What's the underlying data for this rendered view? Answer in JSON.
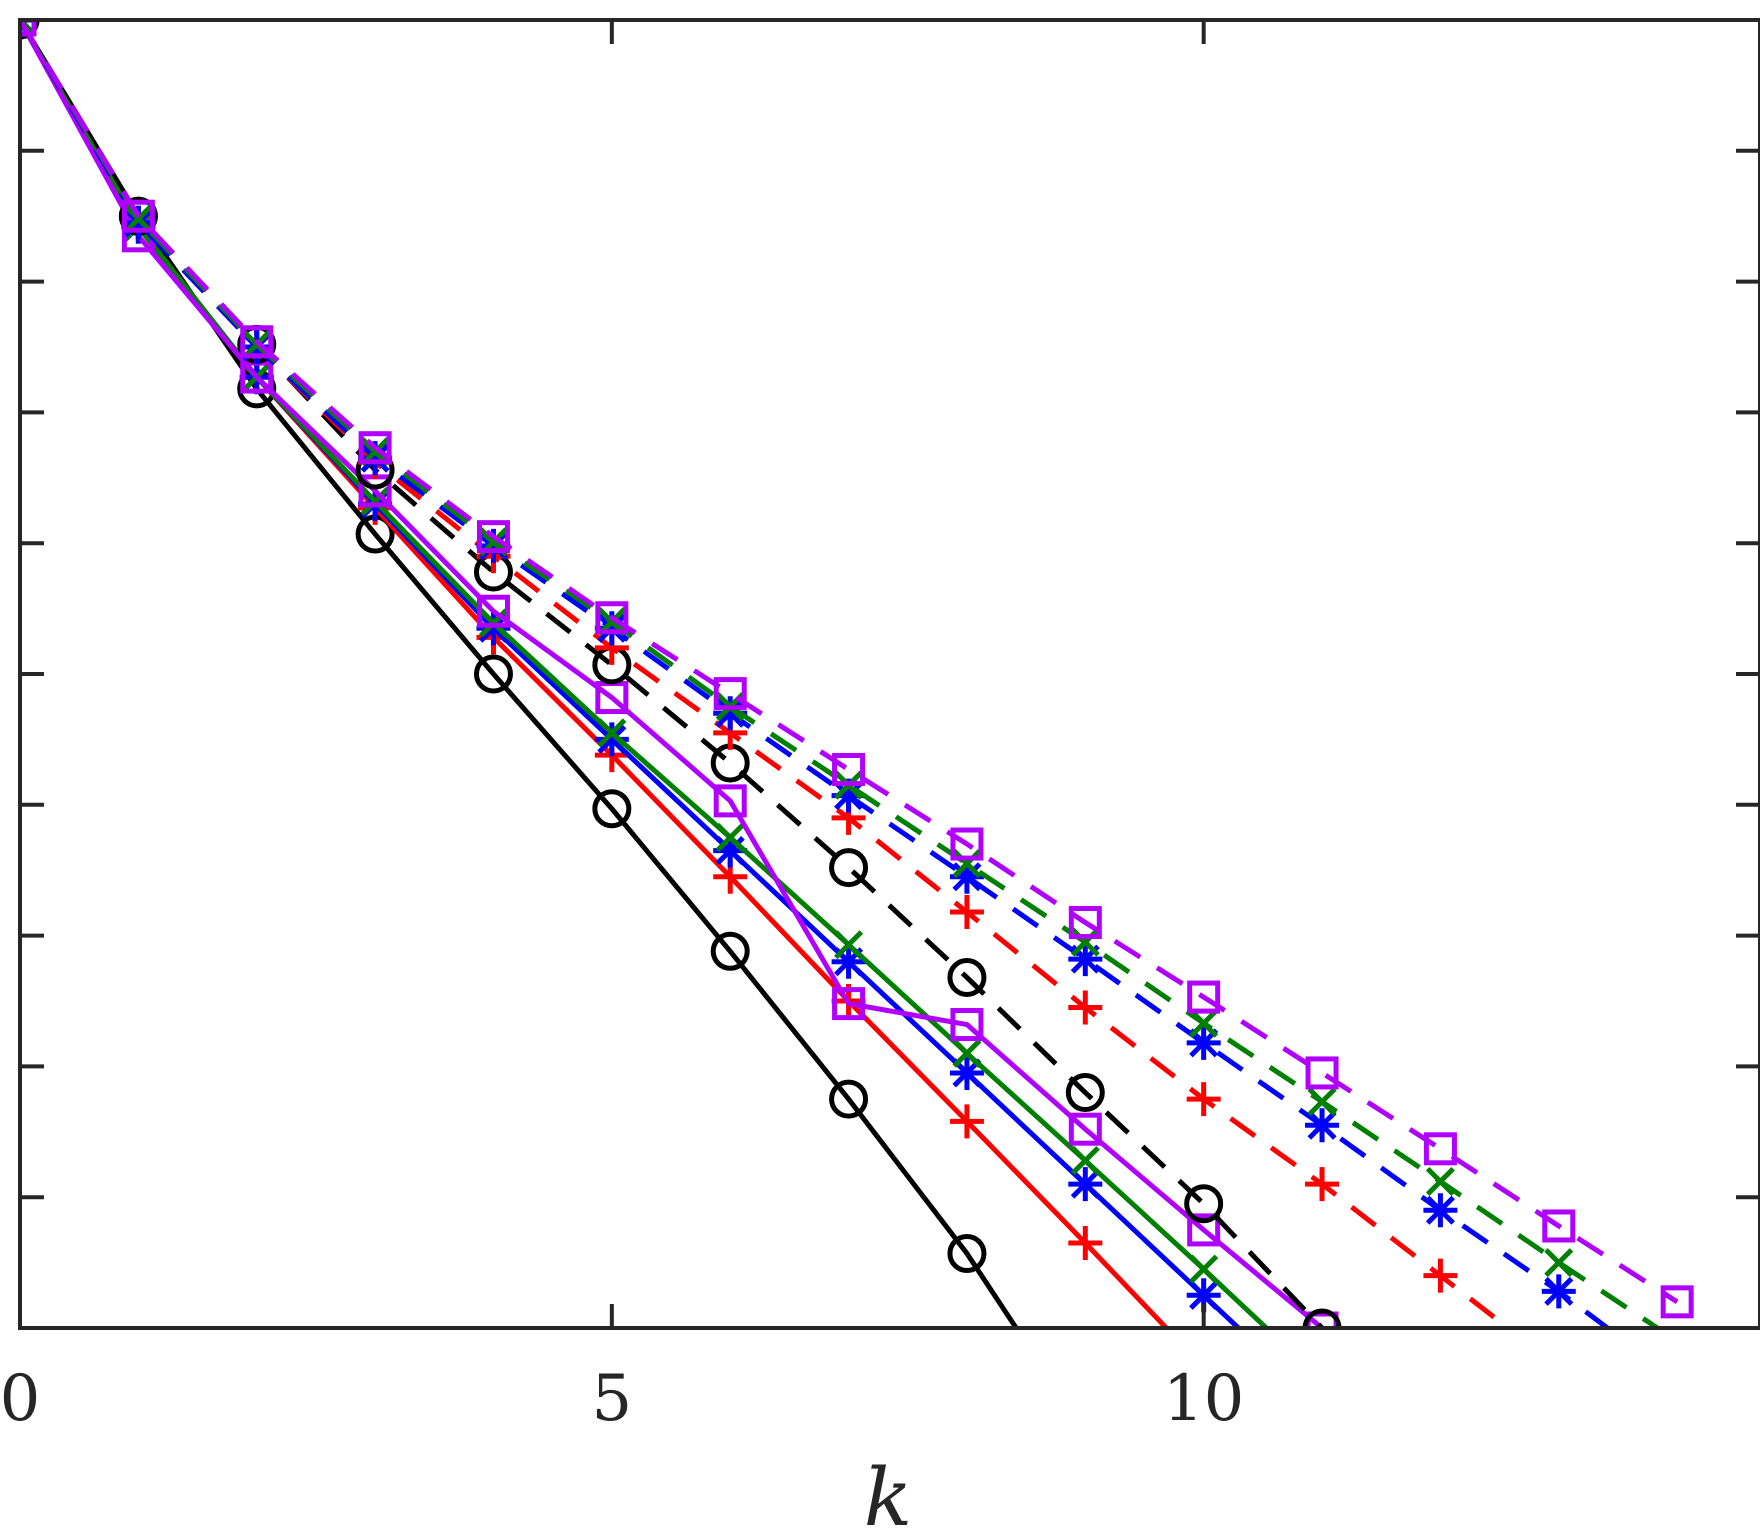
{
  "chart_data": {
    "type": "line",
    "xlabel": "k",
    "ylabel": "",
    "title": "",
    "xlim": [
      0,
      14.7
    ],
    "ylim": [
      -10,
      0
    ],
    "xticks": [
      0,
      5,
      10
    ],
    "xtick_labels": [
      "0",
      "5",
      "10"
    ],
    "yticks": [
      -10,
      -9,
      -8,
      -7,
      -6,
      -5,
      -4,
      -3,
      -2,
      -1,
      0
    ],
    "ytick_labels": [],
    "grid": false,
    "legend": "none",
    "series": [
      {
        "color": "#000000",
        "dash": "solid",
        "marker": "circle",
        "x": [
          0,
          1,
          2,
          3,
          4,
          5,
          6,
          7,
          8,
          9
        ],
        "y": [
          0,
          -1.5,
          -2.82,
          -3.93,
          -5.0,
          -6.03,
          -7.12,
          -8.25,
          -9.43,
          -10.8
        ]
      },
      {
        "color": "#ff0000",
        "dash": "solid",
        "marker": "plus",
        "x": [
          0,
          1,
          2,
          3,
          4,
          5,
          6,
          7,
          8,
          9,
          10
        ],
        "y": [
          0,
          -1.58,
          -2.73,
          -3.73,
          -4.72,
          -5.62,
          -6.55,
          -7.5,
          -8.42,
          -9.35,
          -10.3
        ]
      },
      {
        "color": "#0000ff",
        "dash": "solid",
        "marker": "asterisk",
        "x": [
          0,
          1,
          2,
          3,
          4,
          5,
          6,
          7,
          8,
          9,
          10,
          11
        ],
        "y": [
          0,
          -1.58,
          -2.73,
          -3.7,
          -4.65,
          -5.5,
          -6.35,
          -7.2,
          -8.05,
          -8.9,
          -9.75,
          -10.6
        ]
      },
      {
        "color": "#008000",
        "dash": "solid",
        "marker": "cross",
        "x": [
          0,
          1,
          2,
          3,
          4,
          5,
          6,
          7,
          8,
          9,
          10,
          11
        ],
        "y": [
          0,
          -1.58,
          -2.73,
          -3.68,
          -4.61,
          -5.45,
          -6.25,
          -7.07,
          -7.9,
          -8.72,
          -9.55,
          -10.4
        ]
      },
      {
        "color": "#b000ff",
        "dash": "solid",
        "marker": "square",
        "x": [
          0,
          1,
          2,
          3,
          4,
          5,
          6,
          7,
          8,
          9,
          10,
          11
        ],
        "y": [
          0,
          -1.65,
          -2.73,
          -3.6,
          -4.52,
          -5.18,
          -5.97,
          -7.52,
          -7.68,
          -8.48,
          -9.25,
          -10.0
        ]
      },
      {
        "color": "#000000",
        "dash": "dashed",
        "marker": "circle",
        "x": [
          0,
          1,
          2,
          3,
          4,
          5,
          6,
          7,
          8,
          9,
          10,
          11
        ],
        "y": [
          0,
          -1.5,
          -2.48,
          -3.44,
          -4.22,
          -4.93,
          -5.68,
          -6.48,
          -7.32,
          -8.2,
          -9.05,
          -10.0
        ]
      },
      {
        "color": "#ff0000",
        "dash": "dashed",
        "marker": "plus",
        "x": [
          0,
          1,
          2,
          3,
          4,
          5,
          6,
          7,
          8,
          9,
          10,
          11,
          12,
          13
        ],
        "y": [
          0,
          -1.55,
          -2.5,
          -3.38,
          -4.1,
          -4.8,
          -5.45,
          -6.1,
          -6.82,
          -7.55,
          -8.25,
          -8.9,
          -9.6,
          -10.3
        ]
      },
      {
        "color": "#0000ff",
        "dash": "dashed",
        "marker": "asterisk",
        "x": [
          0,
          1,
          2,
          3,
          4,
          5,
          6,
          7,
          8,
          9,
          10,
          11,
          12,
          13,
          14
        ],
        "y": [
          0,
          -1.55,
          -2.5,
          -3.35,
          -4.02,
          -4.65,
          -5.3,
          -5.93,
          -6.55,
          -7.18,
          -7.82,
          -8.45,
          -9.1,
          -9.72,
          -10.4
        ]
      },
      {
        "color": "#008000",
        "dash": "dashed",
        "marker": "cross",
        "x": [
          0,
          1,
          2,
          3,
          4,
          5,
          6,
          7,
          8,
          9,
          10,
          11,
          12,
          13,
          14
        ],
        "y": [
          0,
          -1.52,
          -2.48,
          -3.3,
          -3.99,
          -4.6,
          -5.25,
          -5.85,
          -6.45,
          -7.05,
          -7.67,
          -8.27,
          -8.88,
          -9.5,
          -10.1
        ]
      },
      {
        "color": "#b000ff",
        "dash": "dashed",
        "marker": "square",
        "x": [
          0,
          1,
          2,
          3,
          4,
          5,
          6,
          7,
          8,
          9,
          10,
          11,
          12,
          13,
          14
        ],
        "y": [
          0,
          -1.5,
          -2.46,
          -3.27,
          -3.95,
          -4.57,
          -5.15,
          -5.73,
          -6.3,
          -6.9,
          -7.47,
          -8.05,
          -8.63,
          -9.22,
          -9.8
        ]
      }
    ]
  }
}
